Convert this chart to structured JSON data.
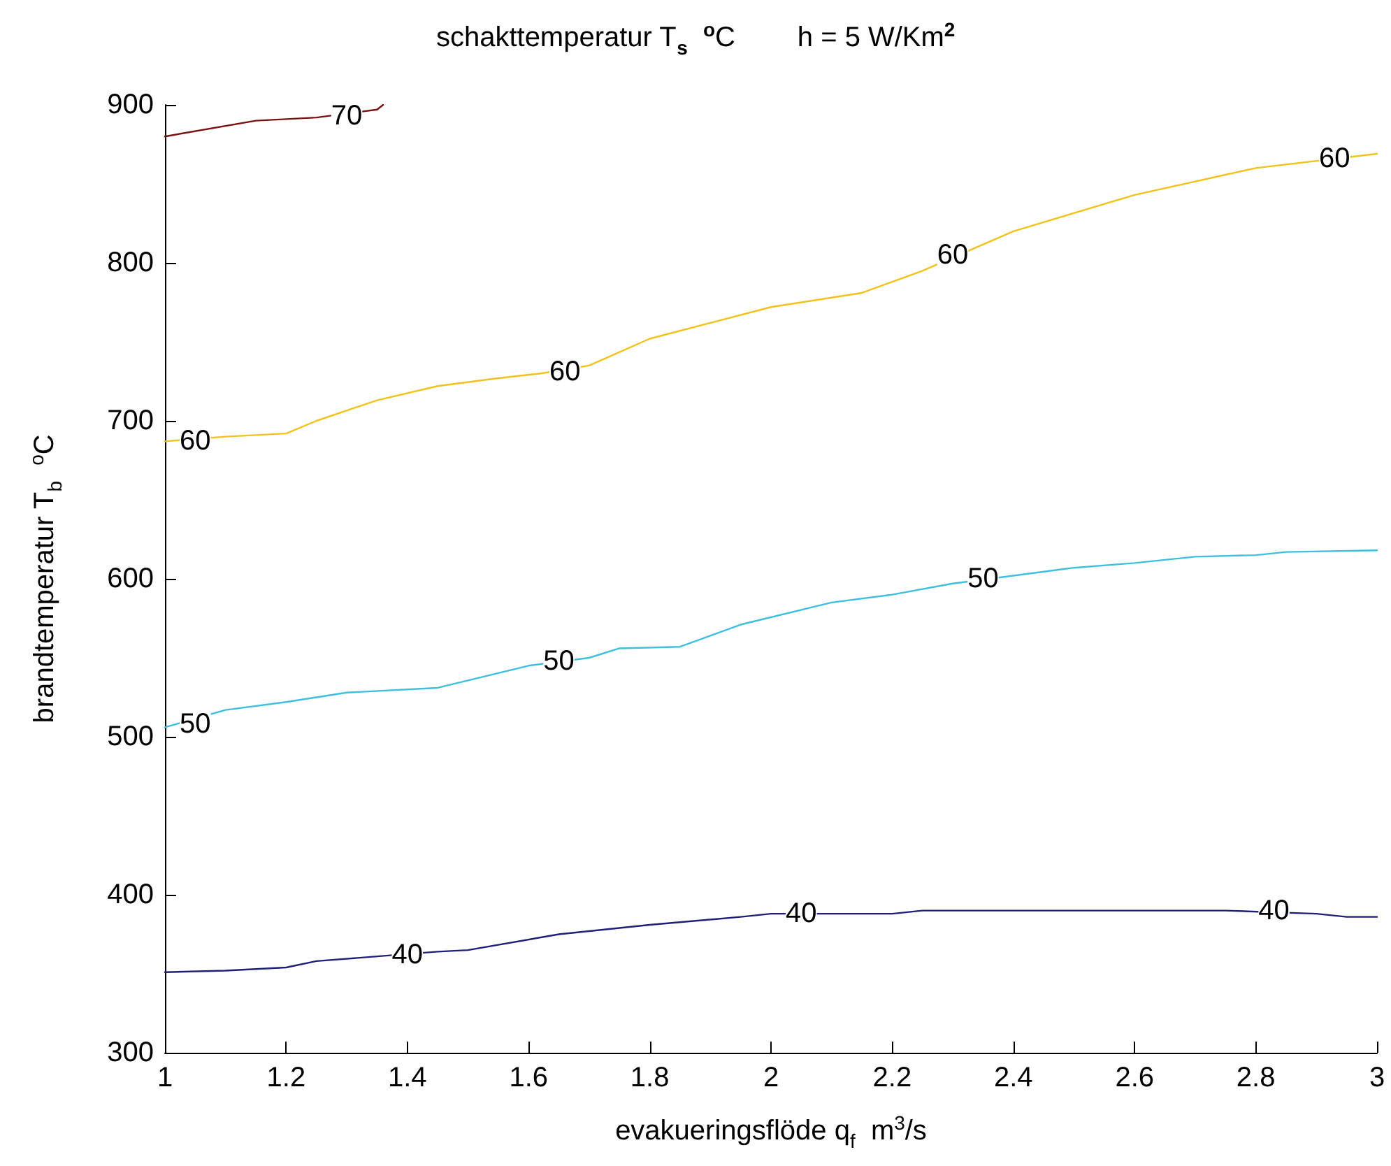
{
  "chart_data": {
    "type": "line",
    "title": "schakttemperatur T$_{s}$  $^{o}$C        h = 5 W/Km$^{2}$",
    "xlabel": "evakueringsflöde q$_{f}$  m$^{3}$/s",
    "ylabel": "brandtemperatur T$_{b}$  $^{o}$C",
    "xlim": [
      1,
      3
    ],
    "xticks": [
      1,
      1.2,
      1.4,
      1.6,
      1.8,
      2,
      2.2,
      2.4,
      2.6,
      2.8,
      3
    ],
    "ylim": [
      300,
      900
    ],
    "yticks": [
      300,
      400,
      500,
      600,
      700,
      800,
      900
    ],
    "grid": false,
    "marker": "none",
    "line_style": "solid",
    "series": [
      {
        "color": "#1f1f7a",
        "x": [
          1,
          1.1,
          1.2,
          1.25,
          1.35,
          1.45,
          1.5,
          1.65,
          1.8,
          1.95,
          2.0,
          2.2,
          2.25,
          2.75,
          2.9,
          2.95,
          3.0
        ],
        "values": [
          351,
          352,
          354,
          358,
          361,
          364,
          365,
          375,
          381,
          386,
          388,
          388,
          390,
          390,
          388,
          386,
          386
        ]
      },
      {
        "color": "#3fbfe0",
        "x": [
          1,
          1.1,
          1.2,
          1.25,
          1.3,
          1.45,
          1.6,
          1.7,
          1.75,
          1.85,
          1.95,
          2.1,
          2.2,
          2.3,
          2.4,
          2.5,
          2.6,
          2.7,
          2.8,
          2.85,
          3.0
        ],
        "values": [
          506,
          517,
          522,
          525,
          528,
          531,
          545,
          550,
          556,
          557,
          571,
          585,
          590,
          597,
          602,
          607,
          610,
          614,
          615,
          617,
          618
        ]
      },
      {
        "color": "#f2c21b",
        "x": [
          1,
          1.1,
          1.2,
          1.25,
          1.35,
          1.45,
          1.55,
          1.62,
          1.7,
          1.8,
          1.9,
          2.0,
          2.15,
          2.25,
          2.4,
          2.6,
          2.8,
          3.0
        ],
        "values": [
          687,
          690,
          692,
          700,
          713,
          722,
          727,
          730,
          735,
          752,
          762,
          772,
          781,
          795,
          820,
          843,
          860,
          869
        ]
      },
      {
        "color": "#7a1010",
        "x": [
          1,
          1.15,
          1.25,
          1.35,
          1.36
        ],
        "values": [
          880,
          890,
          892,
          897,
          900
        ]
      }
    ],
    "annotations": [
      {
        "text": "70",
        "x": 1.3,
        "y": 893
      },
      {
        "text": "60",
        "x": 1.05,
        "y": 687
      },
      {
        "text": "60",
        "x": 1.66,
        "y": 731
      },
      {
        "text": "60",
        "x": 2.3,
        "y": 805
      },
      {
        "text": "60",
        "x": 2.93,
        "y": 866
      },
      {
        "text": "50",
        "x": 1.05,
        "y": 508
      },
      {
        "text": "50",
        "x": 1.65,
        "y": 548
      },
      {
        "text": "50",
        "x": 2.35,
        "y": 600
      },
      {
        "text": "40",
        "x": 1.4,
        "y": 362
      },
      {
        "text": "40",
        "x": 2.05,
        "y": 388
      },
      {
        "text": "40",
        "x": 2.83,
        "y": 390
      }
    ]
  }
}
